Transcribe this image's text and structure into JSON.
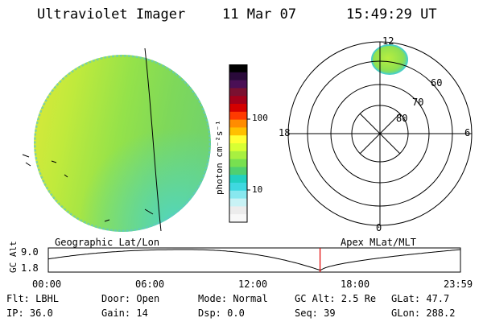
{
  "header": {
    "instrument": "Ultraviolet Imager",
    "date": "11 Mar 07",
    "time": "15:49:29 UT"
  },
  "colorbar": {
    "unit_label": "photon cm⁻²s⁻¹",
    "ticks": [
      "100",
      "10"
    ],
    "colors": [
      "#000000",
      "#2a0a3a",
      "#4a0f55",
      "#7a1030",
      "#a3001a",
      "#d40000",
      "#ff3a00",
      "#ff8c00",
      "#ffc000",
      "#ffff33",
      "#d8ff33",
      "#a8f040",
      "#78e050",
      "#4fd070",
      "#22d0c0",
      "#3fd8e0",
      "#88e8ef",
      "#c8f2f5",
      "#ececec",
      "#f8f8f8"
    ]
  },
  "polar": {
    "mlt_labels": [
      "12",
      "18",
      "6",
      "0"
    ],
    "lat_labels": [
      "60",
      "70",
      "80"
    ]
  },
  "strip": {
    "left_label": "Geographic Lat/Lon",
    "right_label": "Apex MLat/MLT",
    "y_axis_title": "GC Alt",
    "y_ticks": [
      "9.0",
      "1.8"
    ],
    "x_ticks": [
      "00:00",
      "06:00",
      "12:00",
      "18:00",
      "23:59"
    ],
    "marker_time_hours": 15.825
  },
  "info": {
    "filter_label": "Flt: LBHL",
    "ip_label": "IP: 36.0",
    "door_label": "Door: Open",
    "gain_label": "Gain: 14",
    "mode_label": "Mode: Normal",
    "dsp_label": "Dsp:    0.0",
    "gcalt_label": "GC Alt: 2.5 Re",
    "seq_label": "Seq: 39",
    "glat_label": "GLat:  47.7",
    "glon_label": "GLon: 288.2"
  }
}
